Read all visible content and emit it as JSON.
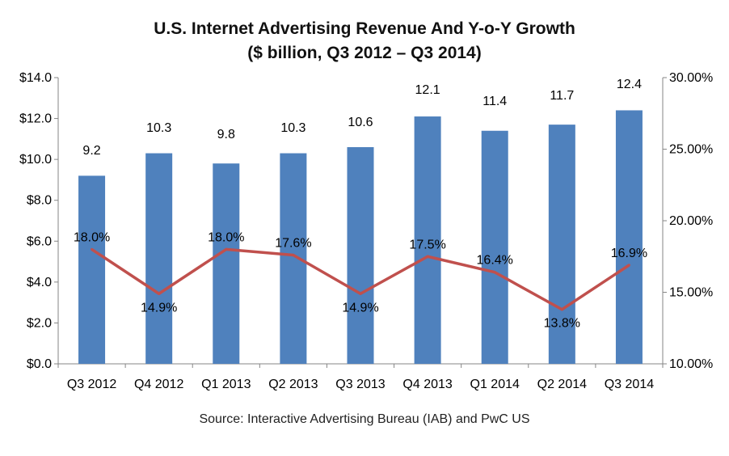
{
  "title_line1": "U.S. Internet Advertising Revenue And Y-o-Y Growth",
  "title_line2": "($ billion, Q3 2012 – Q3 2014)",
  "source": "Source: Interactive Advertising Bureau (IAB) and PwC US",
  "chart_data": {
    "type": "bar",
    "categories": [
      "Q3 2012",
      "Q4 2012",
      "Q1 2013",
      "Q2 2013",
      "Q3 2013",
      "Q4 2013",
      "Q1 2014",
      "Q2 2014",
      "Q3 2014"
    ],
    "series": [
      {
        "type": "bar",
        "axis": "left",
        "values": [
          9.2,
          10.3,
          9.8,
          10.3,
          10.6,
          12.1,
          11.4,
          11.7,
          12.4
        ],
        "labels": [
          "9.2",
          "10.3",
          "9.8",
          "10.3",
          "10.6",
          "12.1",
          "11.4",
          "11.7",
          "12.4"
        ],
        "color": "#4F81BD"
      },
      {
        "type": "line",
        "axis": "right",
        "values": [
          18.0,
          14.9,
          18.0,
          17.6,
          14.9,
          17.5,
          16.4,
          13.8,
          16.9
        ],
        "labels": [
          "18.0%",
          "14.9%",
          "18.0%",
          "17.6%",
          "14.9%",
          "17.5%",
          "16.4%",
          "13.8%",
          "16.9%"
        ],
        "color": "#C0504D"
      }
    ],
    "y_left": {
      "min": 0,
      "max": 14,
      "step": 2,
      "ticks": [
        "$0.0",
        "$2.0",
        "$4.0",
        "$6.0",
        "$8.0",
        "$10.0",
        "$12.0",
        "$14.0"
      ]
    },
    "y_right": {
      "min": 10,
      "max": 30,
      "step": 5,
      "ticks": [
        "10.00%",
        "15.00%",
        "20.00%",
        "25.00%",
        "30.00%"
      ]
    },
    "grid": false,
    "legend": "none"
  }
}
